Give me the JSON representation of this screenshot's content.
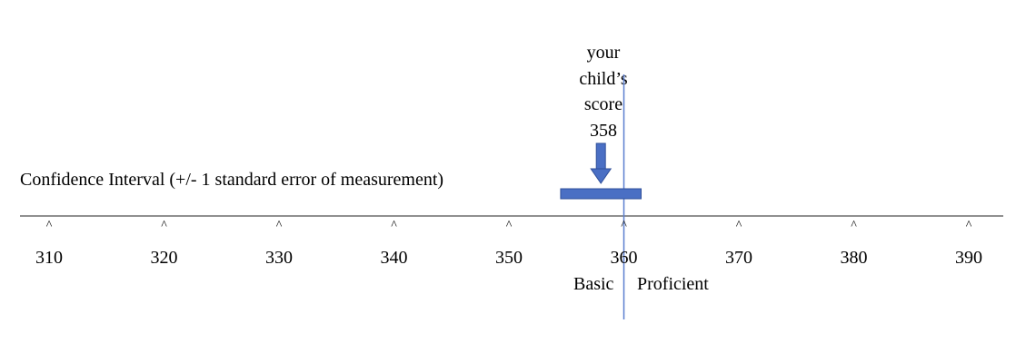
{
  "score": {
    "label_lines": [
      "your",
      "child’s",
      "score"
    ],
    "value": 358
  },
  "confidence_interval": {
    "label": "Confidence Interval (+/- 1 standard error of measurement)",
    "low": 354.5,
    "high": 361.5
  },
  "cut_score": 360,
  "levels": {
    "below": "Basic",
    "above": "Proficient"
  },
  "axis": {
    "min": 310,
    "max": 390,
    "ticks": [
      310,
      320,
      330,
      340,
      350,
      360,
      370,
      380,
      390
    ],
    "tick_marker": "^"
  },
  "colors": {
    "ci_bar": "#4a6fc4",
    "cut_line": "#5b7fd0",
    "axis": "#222222"
  }
}
